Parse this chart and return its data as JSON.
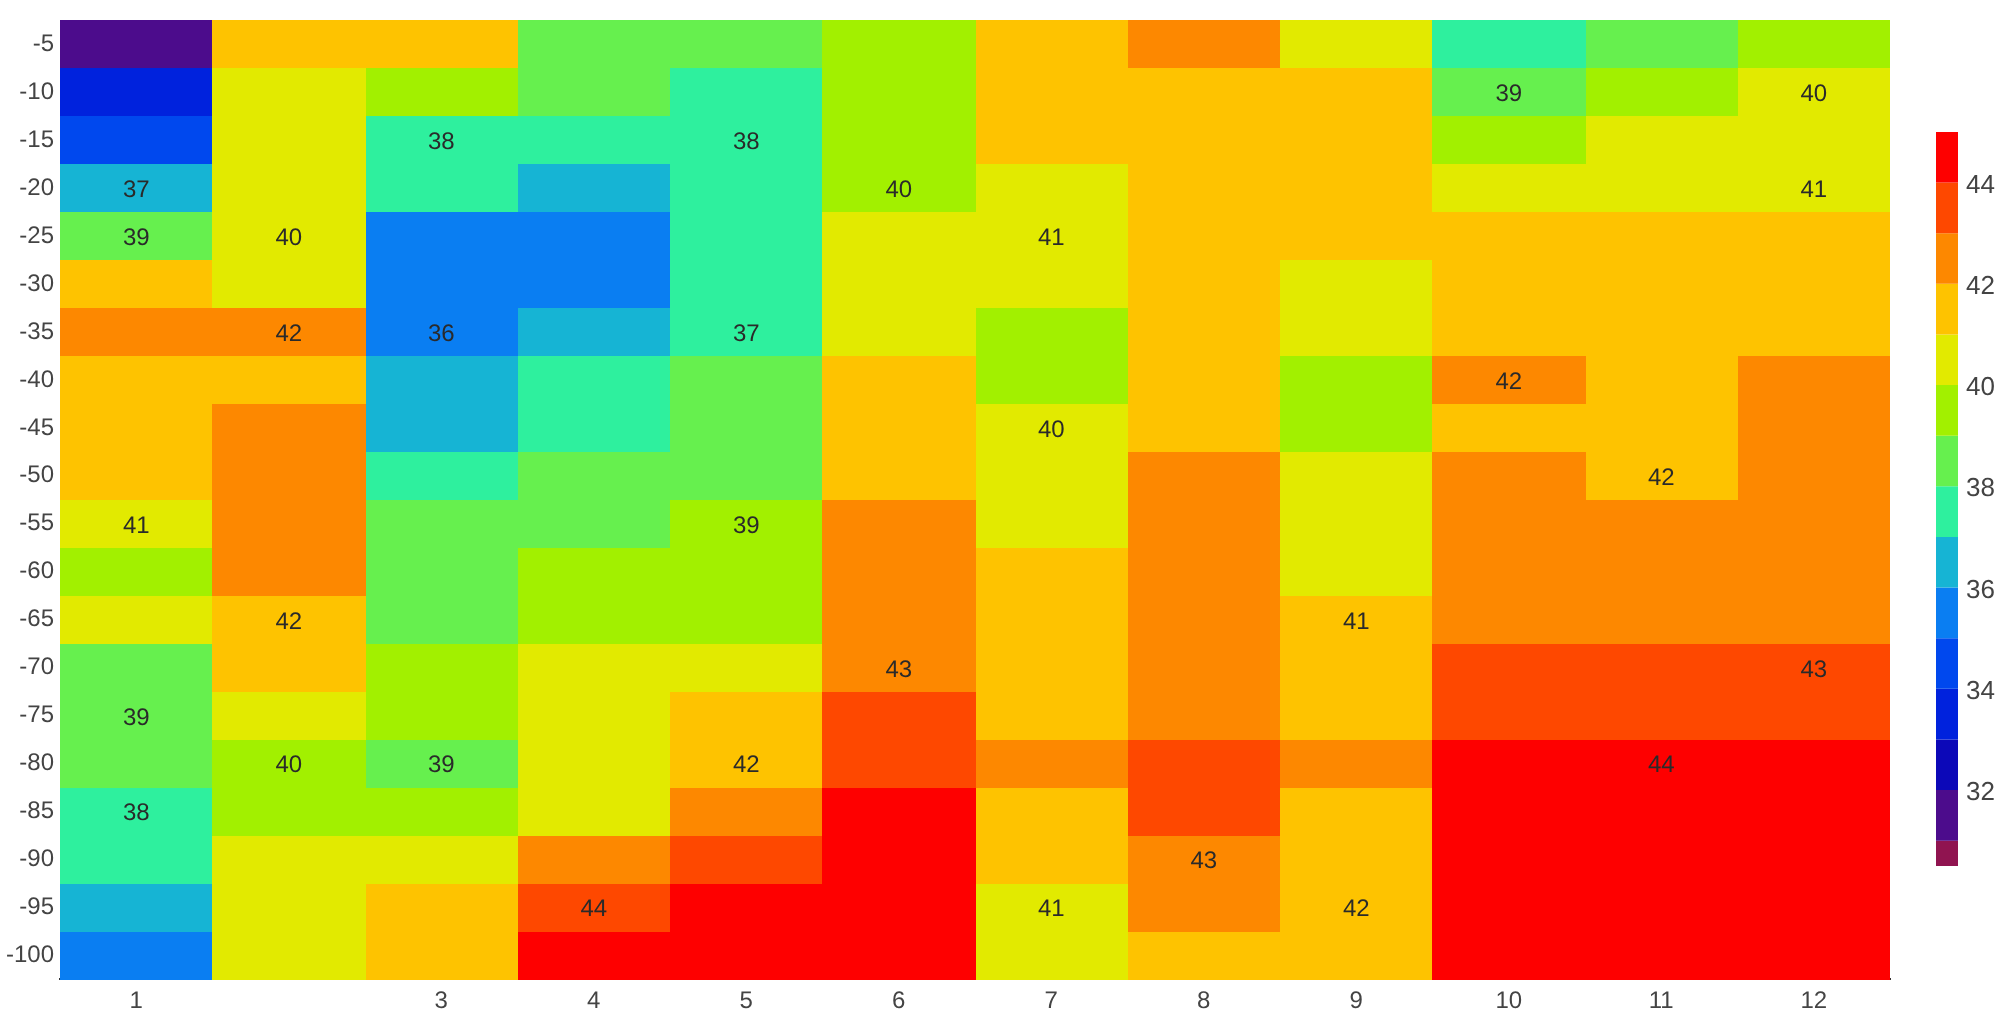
{
  "chart_data": {
    "type": "heatmap",
    "x": [
      1,
      2,
      3,
      4,
      5,
      6,
      7,
      8,
      9,
      10,
      11,
      12
    ],
    "xlim": [
      0.5,
      12.5
    ],
    "xticks": [
      1,
      3,
      4,
      5,
      6,
      7,
      8,
      9,
      10,
      11,
      12
    ],
    "y_categories": [
      "-5",
      "-10",
      "-15",
      "-20",
      "-25",
      "-30",
      "-35",
      "-40",
      "-45",
      "-50",
      "-55",
      "-60",
      "-65",
      "-70",
      "-75",
      "-80",
      "-85",
      "-90",
      "-95",
      "-100"
    ],
    "cells": [
      [
        31.5,
        41.2,
        41.05,
        38.8,
        38.2,
        39.08,
        41.15,
        42.05,
        40.95,
        37.65,
        38.8,
        39.7
      ],
      [
        33.1,
        40.6,
        39.1,
        38.4,
        37.9,
        39.3,
        41.2,
        41.6,
        41.05,
        38.7,
        39.5,
        40.05
      ],
      [
        34.8,
        40.7,
        37.6,
        37.05,
        37.8,
        39.6,
        41.2,
        41.6,
        41.2,
        39.5,
        40.2,
        40.4
      ],
      [
        36.8,
        40.2,
        37.2,
        36.3,
        37.4,
        39.9,
        40.95,
        41.5,
        41.4,
        40.8,
        40.8,
        40.8
      ],
      [
        38.8,
        40.15,
        35.85,
        35.6,
        37.6,
        40.2,
        40.6,
        41.4,
        41.02,
        41.15,
        41.3,
        41.3
      ],
      [
        41.05,
        40.95,
        35.5,
        35.5,
        37.1,
        40.3,
        40.2,
        41.3,
        40.6,
        41.5,
        41.5,
        41.6
      ],
      [
        42.4,
        42.05,
        35.95,
        36.5,
        37.05,
        40.9,
        39.7,
        41.2,
        40.3,
        41.8,
        41.6,
        41.95
      ],
      [
        41.6,
        41.4,
        36.3,
        37.2,
        38.2,
        41.2,
        39.6,
        41.2,
        39.9,
        42.2,
        41.93,
        42.3
      ],
      [
        41.9,
        42.5,
        36.9,
        37.9,
        38.3,
        41.3,
        40.05,
        41.8,
        39.8,
        41.95,
        41.6,
        42.3
      ],
      [
        41.3,
        42.4,
        37.5,
        38.3,
        38.6,
        41.8,
        40.3,
        42.18,
        40.5,
        42.2,
        41.9,
        42.4
      ],
      [
        40.6,
        42.3,
        38.2,
        38.9,
        39.05,
        42.1,
        40.8,
        42.5,
        40.6,
        42.5,
        42.3,
        42.5
      ],
      [
        39.8,
        42.25,
        38.5,
        39.3,
        39.4,
        42.4,
        41.3,
        42.6,
        40.8,
        42.6,
        42.6,
        42.7
      ],
      [
        40.1,
        41.98,
        38.7,
        39.6,
        39.8,
        42.7,
        41.6,
        42.6,
        41.08,
        42.6,
        42.7,
        42.75
      ],
      [
        38.9,
        41.2,
        39.4,
        40.1,
        40.3,
        42.95,
        41.7,
        42.5,
        41.3,
        43.2,
        43.2,
        43.1
      ],
      [
        38.6,
        40.75,
        39.2,
        40.4,
        41.2,
        43.3,
        41.85,
        42.95,
        41.7,
        43.6,
        43.6,
        43.6
      ],
      [
        38.3,
        39.8,
        38.75,
        40.05,
        41.9,
        43.9,
        42.03,
        43.35,
        42.02,
        44.05,
        44.2,
        44.2
      ],
      [
        37.8,
        39.95,
        39.8,
        40.9,
        42.95,
        44.3,
        41.97,
        43.3,
        41.95,
        44.3,
        44.4,
        44.4
      ],
      [
        37.05,
        40.4,
        40.3,
        42.05,
        43.4,
        44.5,
        41.6,
        42.9,
        41.8,
        44.4,
        44.5,
        44.5
      ],
      [
        36.05,
        40.6,
        41.1,
        43.9,
        44.3,
        44.5,
        40.98,
        42.1,
        41.8,
        44.4,
        44.5,
        44.5
      ],
      [
        35.2,
        40.5,
        41.95,
        44.9,
        44.4,
        44.5,
        40.5,
        41.6,
        41.85,
        44.4,
        44.5,
        44.5
      ]
    ],
    "cell_labels": [
      [
        null,
        null,
        null,
        null,
        null,
        null,
        null,
        null,
        null,
        null,
        null,
        null
      ],
      [
        null,
        null,
        null,
        null,
        null,
        null,
        null,
        null,
        null,
        "39",
        null,
        "40"
      ],
      [
        null,
        null,
        "38",
        null,
        "38",
        null,
        null,
        null,
        null,
        null,
        null,
        null
      ],
      [
        "37",
        null,
        null,
        null,
        null,
        "40",
        null,
        null,
        null,
        null,
        null,
        "41"
      ],
      [
        "39",
        "40",
        null,
        null,
        null,
        null,
        "41",
        null,
        null,
        null,
        null,
        null
      ],
      [
        null,
        null,
        null,
        null,
        null,
        null,
        null,
        null,
        null,
        null,
        null,
        null
      ],
      [
        null,
        "42",
        "36",
        null,
        "37",
        null,
        null,
        null,
        null,
        null,
        null,
        null
      ],
      [
        null,
        null,
        null,
        null,
        null,
        null,
        null,
        null,
        null,
        "42",
        null,
        null
      ],
      [
        null,
        null,
        null,
        null,
        null,
        null,
        "40",
        null,
        null,
        null,
        null,
        null
      ],
      [
        null,
        null,
        null,
        null,
        null,
        null,
        null,
        null,
        null,
        null,
        "42",
        null
      ],
      [
        "41",
        null,
        null,
        null,
        "39",
        null,
        null,
        null,
        null,
        null,
        null,
        null
      ],
      [
        null,
        null,
        null,
        null,
        null,
        null,
        null,
        null,
        null,
        null,
        null,
        null
      ],
      [
        null,
        "42",
        null,
        null,
        null,
        null,
        null,
        null,
        "41",
        null,
        null,
        null
      ],
      [
        null,
        null,
        null,
        null,
        null,
        "43",
        null,
        null,
        null,
        null,
        null,
        "43"
      ],
      [
        "39",
        null,
        null,
        null,
        null,
        null,
        null,
        null,
        null,
        null,
        null,
        null
      ],
      [
        null,
        "40",
        "39",
        null,
        "42",
        null,
        null,
        null,
        null,
        null,
        "44",
        null
      ],
      [
        "38",
        null,
        null,
        null,
        null,
        null,
        null,
        null,
        null,
        null,
        null,
        null
      ],
      [
        null,
        null,
        null,
        null,
        null,
        null,
        null,
        "43",
        null,
        null,
        null,
        null
      ],
      [
        null,
        null,
        null,
        "44",
        null,
        null,
        "41",
        null,
        "42",
        null,
        null,
        null
      ],
      [
        null,
        null,
        null,
        null,
        null,
        null,
        null,
        null,
        null,
        null,
        null,
        null
      ]
    ],
    "clim": [
      30.5,
      45
    ],
    "cticks": [
      32,
      34,
      36,
      38,
      40,
      42,
      44
    ]
  }
}
